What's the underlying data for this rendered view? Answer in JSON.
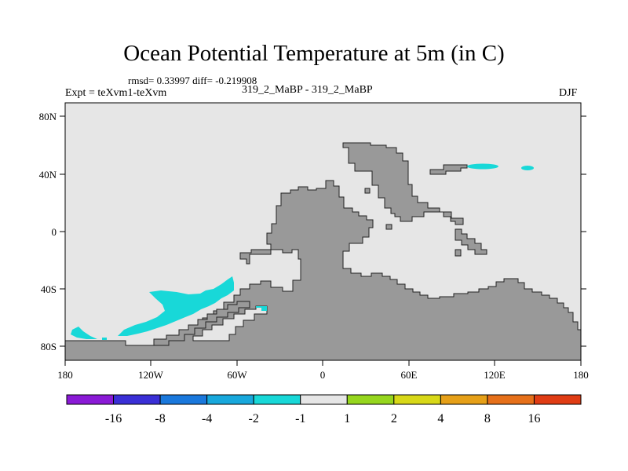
{
  "title": "Ocean Potential Temperature at 5m (in C)",
  "stats_line": "rmsd= 0.33997 diff= -0.219908",
  "left_label": "Expt = teXvm1-teXvm",
  "center_label": "319_2_MaBP - 319_2_MaBP",
  "right_label": "DJF",
  "x_ticks": [
    "180",
    "120W",
    "60W",
    "0",
    "60E",
    "120E",
    "180"
  ],
  "y_ticks": [
    "80N",
    "40N",
    "0",
    "40S",
    "80S"
  ],
  "colors": {
    "ocean_neutral": "#e6e6e6",
    "land": "#999999",
    "anomaly_cyan": "#18d8d8"
  },
  "colorbar": {
    "colors": [
      "#8a1ad6",
      "#3a2fd6",
      "#1a78dc",
      "#18a8dc",
      "#18d8d8",
      "#e6e6e6",
      "#96d61e",
      "#d8d818",
      "#e6a018",
      "#e6701a",
      "#e03c14"
    ],
    "labels": [
      "-16",
      "-8",
      "-4",
      "-2",
      "-1",
      "1",
      "2",
      "4",
      "8",
      "16"
    ]
  }
}
